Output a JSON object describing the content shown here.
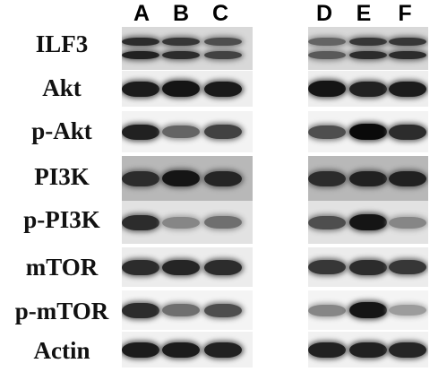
{
  "lanes": [
    "A",
    "B",
    "C",
    "D",
    "E",
    "F"
  ],
  "rows": [
    {
      "label": "ILF3",
      "bands": [
        [
          0.85,
          0.9
        ],
        [
          0.8,
          0.85
        ],
        [
          0.7,
          0.75
        ],
        [
          0.6,
          0.65
        ],
        [
          0.8,
          0.85
        ],
        [
          0.8,
          0.85
        ]
      ],
      "double": true,
      "bg": "#d8d8d8"
    },
    {
      "label": "Akt",
      "bands": [
        0.92,
        0.95,
        0.93,
        0.95,
        0.9,
        0.92
      ],
      "double": false,
      "bg": "#eeeeee"
    },
    {
      "label": "p-Akt",
      "bands": [
        0.9,
        0.6,
        0.75,
        0.7,
        1.0,
        0.85
      ],
      "double": false,
      "bg": "#f3f3f3"
    },
    {
      "label": "PI3K",
      "bands": [
        0.85,
        0.95,
        0.88,
        0.85,
        0.9,
        0.9
      ],
      "double": false,
      "bg": "#b8b8b8"
    },
    {
      "label": "p-PI3K",
      "bands": [
        0.85,
        0.45,
        0.55,
        0.7,
        0.95,
        0.45
      ],
      "double": false,
      "bg": "#e2e2e2"
    },
    {
      "label": "mTOR",
      "bands": [
        0.85,
        0.88,
        0.85,
        0.8,
        0.85,
        0.8
      ],
      "double": false,
      "bg": "#ececec"
    },
    {
      "label": "p-mTOR",
      "bands": [
        0.85,
        0.55,
        0.7,
        0.45,
        0.95,
        0.35
      ],
      "double": false,
      "bg": "#f4f4f4"
    },
    {
      "label": "Actin",
      "bands": [
        0.92,
        0.92,
        0.9,
        0.9,
        0.9,
        0.88
      ],
      "double": false,
      "bg": "#f1f1f1"
    }
  ]
}
